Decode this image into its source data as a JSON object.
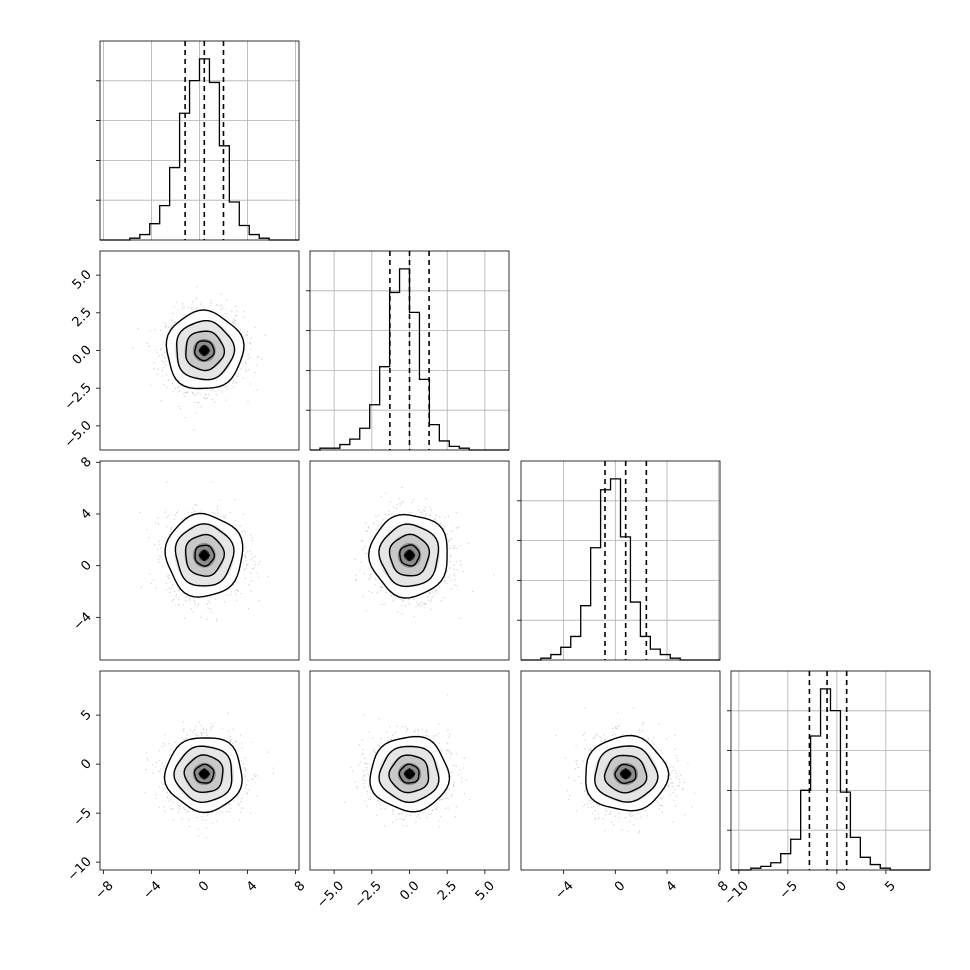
{
  "chart_data": {
    "type": "corner",
    "grid": "on",
    "parameters": [
      {
        "index": 0,
        "mean": 0.4,
        "sd": 1.6,
        "range": [
          -8.3,
          8.3
        ],
        "quantiles": [
          -1.2,
          0.4,
          2.0
        ],
        "ticks": [
          -8,
          -4,
          0,
          4,
          8
        ],
        "tick_labels": [
          "−8",
          "−4",
          "0",
          "4",
          "8"
        ]
      },
      {
        "index": 1,
        "mean": 0.0,
        "sd": 1.3,
        "range": [
          -6.6,
          6.6
        ],
        "quantiles": [
          -1.3,
          0.0,
          1.3
        ],
        "ticks": [
          -5.0,
          -2.5,
          0.0,
          2.5,
          5.0
        ],
        "tick_labels": [
          "−5.0",
          "−2.5",
          "0.0",
          "2.5",
          "5.0"
        ]
      },
      {
        "index": 2,
        "mean": 0.8,
        "sd": 1.6,
        "range": [
          -7.3,
          8.1
        ],
        "quantiles": [
          -0.8,
          0.8,
          2.4
        ],
        "ticks": [
          -4,
          0,
          4,
          8
        ],
        "tick_labels": [
          "−4",
          "0",
          "4",
          "8"
        ]
      },
      {
        "index": 3,
        "mean": -1.0,
        "sd": 1.9,
        "range": [
          -10.8,
          9.5
        ],
        "quantiles": [
          -2.8,
          -1.0,
          1.0
        ],
        "ticks": [
          -10,
          -5,
          0,
          5
        ],
        "tick_labels": [
          "−10",
          "−5",
          "0",
          "5"
        ]
      }
    ],
    "y_axis_ticks": [
      {
        "row": 1,
        "ticks": [
          5.0,
          2.5,
          0.0,
          -2.5,
          -5.0
        ],
        "tick_labels": [
          "5.0",
          "2.5",
          "0.0",
          "−2.5",
          "−5.0"
        ]
      },
      {
        "row": 2,
        "ticks": [
          8,
          4,
          0,
          -4
        ],
        "tick_labels": [
          "8",
          "4",
          "0",
          "−4"
        ]
      },
      {
        "row": 3,
        "ticks": [
          5,
          0,
          -5,
          -10
        ],
        "tick_labels": [
          "5",
          "0",
          "−5",
          "−10"
        ]
      }
    ],
    "histograms": [
      {
        "param": 0,
        "bin_width": 0.83,
        "relative_heights": [
          0.0,
          0.0,
          0.0,
          0.01,
          0.03,
          0.09,
          0.19,
          0.4,
          0.7,
          0.88,
          1.0,
          0.87,
          0.52,
          0.21,
          0.08,
          0.03,
          0.01,
          0.0,
          0.0,
          0.0
        ]
      },
      {
        "param": 1,
        "bin_width": 0.66,
        "relative_heights": [
          0.0,
          0.01,
          0.01,
          0.03,
          0.06,
          0.12,
          0.25,
          0.46,
          0.87,
          1.0,
          0.76,
          0.39,
          0.14,
          0.05,
          0.02,
          0.01,
          0.0,
          0.0,
          0.0,
          0.0
        ]
      },
      {
        "param": 2,
        "bin_width": 0.77,
        "relative_heights": [
          0.0,
          0.0,
          0.01,
          0.03,
          0.07,
          0.13,
          0.3,
          0.62,
          0.94,
          1.0,
          0.68,
          0.32,
          0.13,
          0.06,
          0.03,
          0.01,
          0.0,
          0.0,
          0.0,
          0.0
        ]
      },
      {
        "param": 3,
        "bin_width": 1.01,
        "relative_heights": [
          0.0,
          0.0,
          0.01,
          0.02,
          0.04,
          0.09,
          0.17,
          0.44,
          0.74,
          1.0,
          0.88,
          0.43,
          0.18,
          0.07,
          0.03,
          0.01,
          0.0,
          0.0,
          0.0,
          0.0
        ]
      }
    ],
    "contour_sigma_levels": [
      0.5,
      1.0,
      1.5,
      2.0
    ],
    "pairs": [
      {
        "row": 1,
        "col": 0,
        "rho": 0.0
      },
      {
        "row": 2,
        "col": 0,
        "rho": 0.0
      },
      {
        "row": 2,
        "col": 1,
        "rho": 0.0
      },
      {
        "row": 3,
        "col": 0,
        "rho": 0.0
      },
      {
        "row": 3,
        "col": 1,
        "rho": 0.0
      },
      {
        "row": 3,
        "col": 2,
        "rho": 0.0
      }
    ],
    "colors": {
      "points": "#808080",
      "density": "#000000",
      "lines": "#000000",
      "grid": "#b0b0b0"
    }
  }
}
